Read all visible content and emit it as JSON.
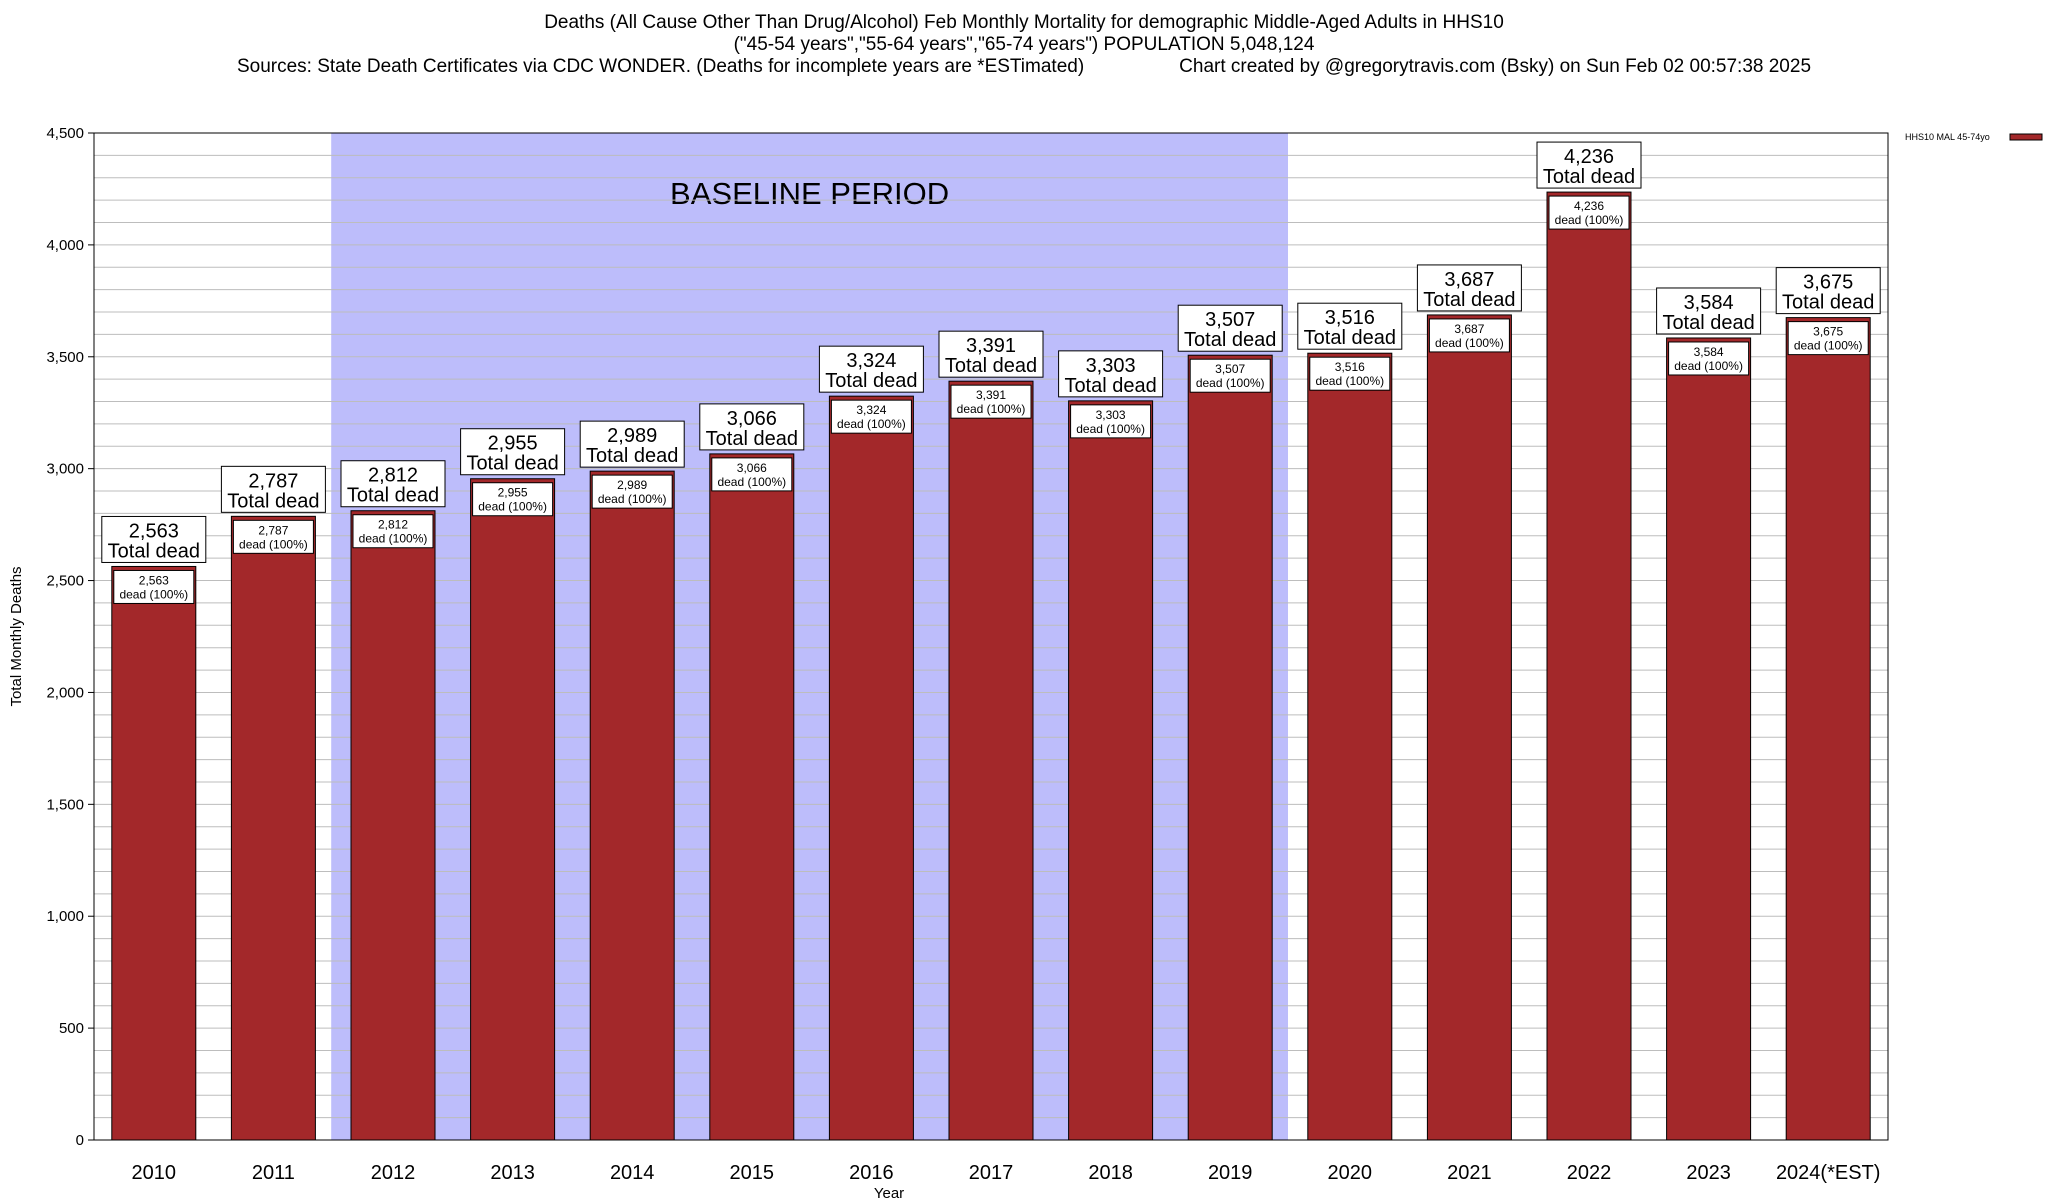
{
  "chart_data": {
    "type": "bar",
    "title": "Deaths (All Cause Other Than Drug/Alcohol) Feb Monthly Mortality for demographic Middle-Aged Adults in HHS10",
    "subtitle": "(\"45-54 years\",\"55-64 years\",\"65-74 years\") POPULATION 5,048,124",
    "sources": "Sources: State Death Certificates via CDC WONDER. (Deaths for incomplete years are *ESTimated)",
    "credit": "Chart created by @gregorytravis.com (Bsky) on Sun Feb 02 00:57:38 2025",
    "xlabel": "Year",
    "ylabel": "Total Monthly Deaths",
    "ylim": [
      0,
      4500
    ],
    "yticks": [
      0,
      500,
      1000,
      1500,
      2000,
      2500,
      3000,
      3500,
      4000,
      4500
    ],
    "ytick_labels": [
      "0",
      "500",
      "1,000",
      "1,500",
      "2,000",
      "2,500",
      "3,000",
      "3,500",
      "4,000",
      "4,500"
    ],
    "minor_grid_step": 100,
    "grid": true,
    "legend_position": "top-right",
    "baseline_region": {
      "label": "BASELINE PERIOD",
      "from_category": "2012",
      "to_category": "2019",
      "color": "#bdbdfb"
    },
    "categories": [
      "2010",
      "2011",
      "2012",
      "2013",
      "2014",
      "2015",
      "2016",
      "2017",
      "2018",
      "2019",
      "2020",
      "2021",
      "2022",
      "2023",
      "2024(*EST)"
    ],
    "series": [
      {
        "name": "HHS10 MAL 45-74yo",
        "color": "#a3282a",
        "values": [
          2563,
          2787,
          2812,
          2955,
          2989,
          3066,
          3324,
          3391,
          3303,
          3507,
          3516,
          3687,
          4236,
          3584,
          3675
        ],
        "value_labels": [
          "2,563",
          "2,787",
          "2,812",
          "2,955",
          "2,989",
          "3,066",
          "3,324",
          "3,391",
          "3,303",
          "3,507",
          "3,516",
          "3,687",
          "4,236",
          "3,584",
          "3,675"
        ]
      }
    ],
    "total_label_suffix": "Total dead",
    "inner_label_suffix": "dead (100%)"
  }
}
